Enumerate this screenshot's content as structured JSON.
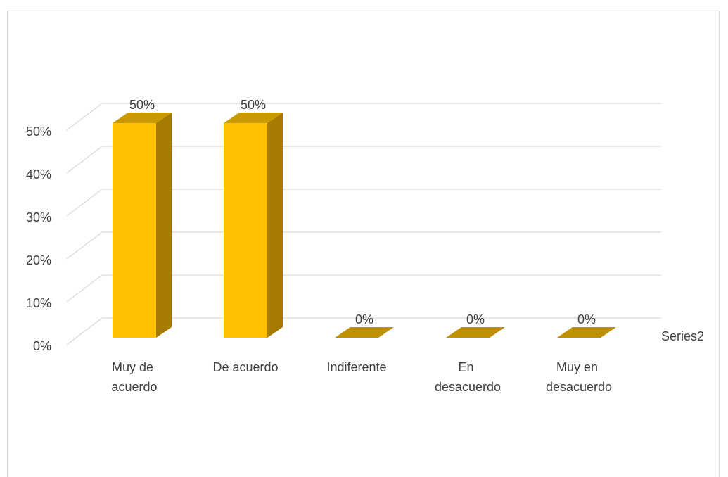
{
  "chart_data": {
    "type": "bar3d",
    "categories": [
      "Muy de acuerdo",
      "De acuerdo",
      "Indiferente",
      "En desacuerdo",
      "Muy en desacuerdo"
    ],
    "series": [
      {
        "name": "Series2",
        "color": "#ffc000",
        "values": [
          50,
          50,
          0,
          0,
          0
        ],
        "value_labels": [
          "50%",
          "50%",
          "0%",
          "0%",
          "0%"
        ]
      }
    ],
    "ylim": [
      0,
      50
    ],
    "yticks": [
      {
        "value": 0,
        "label": "0%"
      },
      {
        "value": 10,
        "label": "10%"
      },
      {
        "value": 20,
        "label": "20%"
      },
      {
        "value": 30,
        "label": "30%"
      },
      {
        "value": 40,
        "label": "40%"
      },
      {
        "value": 50,
        "label": "50%"
      }
    ],
    "grid": true
  }
}
